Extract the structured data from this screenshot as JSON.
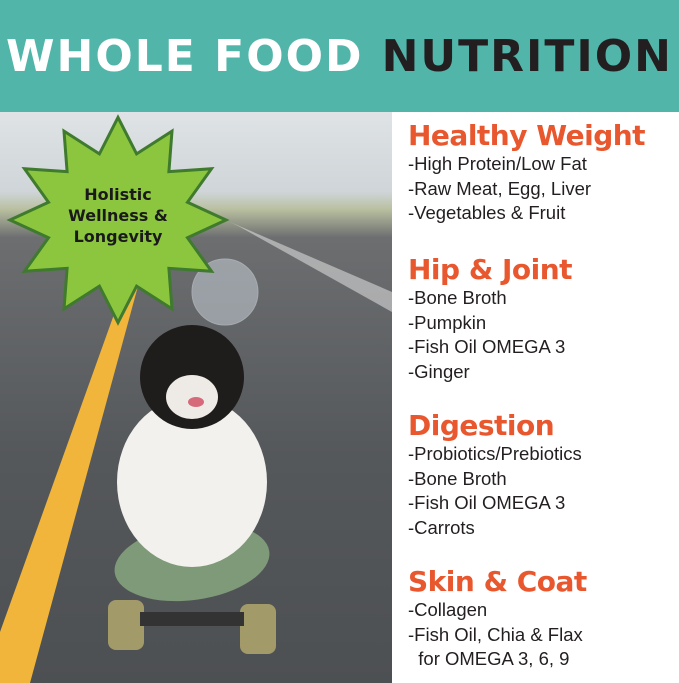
{
  "header": {
    "title_light": "WHOLE FOOD",
    "title_dark": "NUTRITION",
    "bg_color": "#52b5a9"
  },
  "badge": {
    "lines": [
      "Holistic",
      "Wellness &",
      "Longevity"
    ],
    "color": "#8cc63f"
  },
  "accent_color": "#e8572e",
  "sections": [
    {
      "title": "Healthy Weight",
      "items": [
        "-High Protein/Low Fat",
        "-Raw Meat, Egg, Liver",
        "-Vegetables & Fruit"
      ]
    },
    {
      "title": "Hip & Joint",
      "items": [
        "-Bone Broth",
        "-Pumpkin",
        "-Fish Oil OMEGA 3",
        "-Ginger"
      ]
    },
    {
      "title": "Digestion",
      "items": [
        "-Probiotics/Prebiotics",
        "-Bone Broth",
        "-Fish Oil OMEGA 3",
        "-Carrots"
      ]
    },
    {
      "title": "Skin & Coat",
      "items": [
        "-Collagen",
        "-Fish Oil, Chia & Flax",
        "  for OMEGA 3, 6, 9"
      ]
    }
  ]
}
